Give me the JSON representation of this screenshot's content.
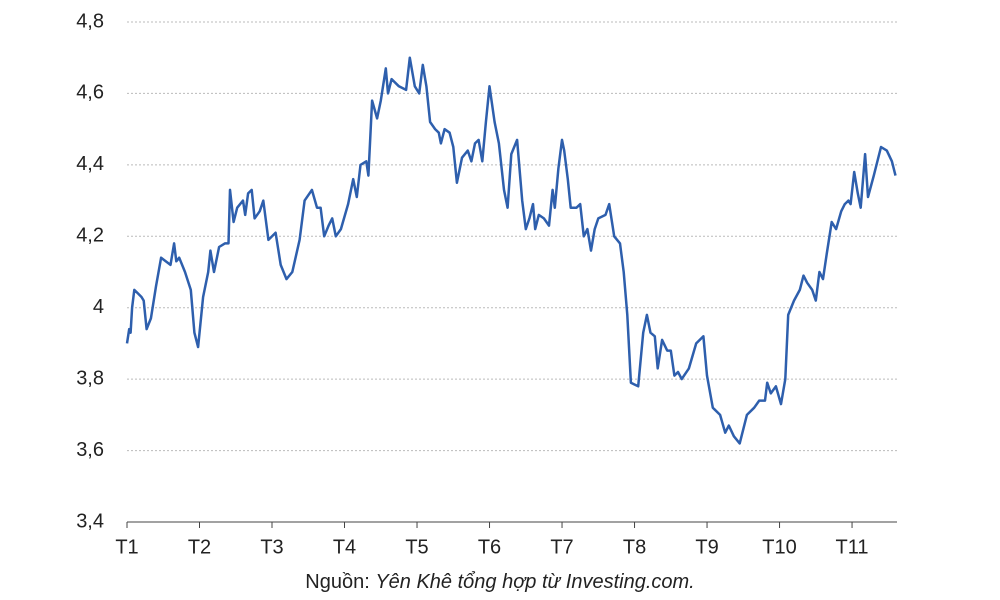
{
  "chart_data": {
    "type": "line",
    "source_label": "Nguồn:",
    "source": "Yên Khê tổng hợp từ Investing.com.",
    "color": "#2e5fad",
    "grid": true,
    "xlim": [
      1,
      11.62
    ],
    "xticks": [
      {
        "value": 1,
        "label": "T1"
      },
      {
        "value": 2,
        "label": "T2"
      },
      {
        "value": 3,
        "label": "T3"
      },
      {
        "value": 4,
        "label": "T4"
      },
      {
        "value": 5,
        "label": "T5"
      },
      {
        "value": 6,
        "label": "T6"
      },
      {
        "value": 7,
        "label": "T7"
      },
      {
        "value": 8,
        "label": "T8"
      },
      {
        "value": 9,
        "label": "T9"
      },
      {
        "value": 10,
        "label": "T10"
      },
      {
        "value": 11,
        "label": "T11"
      }
    ],
    "ylim": [
      3.4,
      4.8
    ],
    "yticks": [
      {
        "value": 3.4,
        "label": "3,4"
      },
      {
        "value": 3.6,
        "label": "3,6"
      },
      {
        "value": 3.8,
        "label": "3,8"
      },
      4,
      {
        "value": 4.2,
        "label": "4,2"
      },
      {
        "value": 4.4,
        "label": "4,4"
      },
      {
        "value": 4.6,
        "label": "4,6"
      },
      {
        "value": 4.8,
        "label": "4,8"
      }
    ],
    "x": [
      1,
      1.03,
      1.05,
      1.07,
      1.1,
      1.15,
      1.2,
      1.23,
      1.27,
      1.33,
      1.4,
      1.47,
      1.6,
      1.65,
      1.68,
      1.72,
      1.8,
      1.88,
      1.93,
      1.98,
      2.05,
      2.12,
      2.15,
      2.2,
      2.27,
      2.35,
      2.4,
      2.42,
      2.47,
      2.52,
      2.6,
      2.63,
      2.67,
      2.72,
      2.76,
      2.83,
      2.88,
      2.95,
      3.05,
      3.12,
      3.2,
      3.28,
      3.38,
      3.45,
      3.55,
      3.62,
      3.67,
      3.72,
      3.78,
      3.83,
      3.88,
      3.95,
      4.05,
      4.12,
      4.17,
      4.22,
      4.3,
      4.33,
      4.38,
      4.45,
      4.5,
      4.57,
      4.6,
      4.65,
      4.75,
      4.85,
      4.9,
      4.97,
      5.03,
      5.08,
      5.13,
      5.18,
      5.25,
      5.3,
      5.33,
      5.38,
      5.45,
      5.5,
      5.55,
      5.62,
      5.7,
      5.75,
      5.8,
      5.85,
      5.9,
      5.95,
      6.0,
      6.07,
      6.13,
      6.2,
      6.25,
      6.3,
      6.38,
      6.45,
      6.5,
      6.55,
      6.6,
      6.63,
      6.68,
      6.75,
      6.82,
      6.87,
      6.9,
      6.95,
      7.0,
      7.03,
      7.08,
      7.12,
      7.2,
      7.25,
      7.3,
      7.35,
      7.4,
      7.45,
      7.5,
      7.6,
      7.65,
      7.72,
      7.8,
      7.85,
      7.9,
      7.95,
      8.05,
      8.12,
      8.17,
      8.22,
      8.28,
      8.32,
      8.38,
      8.45,
      8.5,
      8.55,
      8.6,
      8.65,
      8.75,
      8.85,
      8.95,
      9.0,
      9.08,
      9.18,
      9.25,
      9.3,
      9.37,
      9.45,
      9.55,
      9.65,
      9.72,
      9.8,
      9.83,
      9.88,
      9.95,
      10.02,
      10.08,
      10.12,
      10.2,
      10.28,
      10.33,
      10.38,
      10.45,
      10.5,
      10.55,
      10.6,
      10.65,
      10.72,
      10.78,
      10.85,
      10.9,
      10.95,
      10.98,
      11.03,
      11.08,
      11.12,
      11.18,
      11.22,
      11.3,
      11.4,
      11.48,
      11.55,
      11.6
    ],
    "values": [
      3.9,
      3.94,
      3.93,
      4.0,
      4.05,
      4.04,
      4.03,
      4.02,
      3.94,
      3.97,
      4.06,
      4.14,
      4.12,
      4.18,
      4.13,
      4.14,
      4.1,
      4.05,
      3.93,
      3.89,
      4.03,
      4.1,
      4.16,
      4.1,
      4.17,
      4.18,
      4.18,
      4.33,
      4.24,
      4.28,
      4.3,
      4.26,
      4.32,
      4.33,
      4.25,
      4.27,
      4.3,
      4.19,
      4.21,
      4.12,
      4.08,
      4.1,
      4.19,
      4.3,
      4.33,
      4.28,
      4.28,
      4.2,
      4.23,
      4.25,
      4.2,
      4.22,
      4.29,
      4.36,
      4.31,
      4.4,
      4.41,
      4.37,
      4.58,
      4.53,
      4.58,
      4.67,
      4.6,
      4.64,
      4.62,
      4.61,
      4.7,
      4.62,
      4.6,
      4.68,
      4.62,
      4.52,
      4.5,
      4.49,
      4.46,
      4.5,
      4.49,
      4.45,
      4.35,
      4.42,
      4.44,
      4.41,
      4.46,
      4.47,
      4.41,
      4.52,
      4.62,
      4.52,
      4.46,
      4.33,
      4.28,
      4.43,
      4.47,
      4.3,
      4.22,
      4.25,
      4.29,
      4.22,
      4.26,
      4.25,
      4.23,
      4.33,
      4.28,
      4.39,
      4.47,
      4.44,
      4.36,
      4.28,
      4.28,
      4.29,
      4.2,
      4.22,
      4.16,
      4.22,
      4.25,
      4.26,
      4.29,
      4.2,
      4.18,
      4.1,
      3.98,
      3.79,
      3.78,
      3.93,
      3.98,
      3.93,
      3.92,
      3.83,
      3.91,
      3.88,
      3.88,
      3.81,
      3.82,
      3.8,
      3.83,
      3.9,
      3.92,
      3.81,
      3.72,
      3.7,
      3.65,
      3.67,
      3.64,
      3.62,
      3.7,
      3.72,
      3.74,
      3.74,
      3.79,
      3.76,
      3.78,
      3.73,
      3.8,
      3.98,
      4.02,
      4.05,
      4.09,
      4.07,
      4.05,
      4.02,
      4.1,
      4.08,
      4.15,
      4.24,
      4.22,
      4.27,
      4.29,
      4.3,
      4.29,
      4.38,
      4.32,
      4.28,
      4.43,
      4.31,
      4.37,
      4.45,
      4.44,
      4.41,
      4.37
    ]
  }
}
